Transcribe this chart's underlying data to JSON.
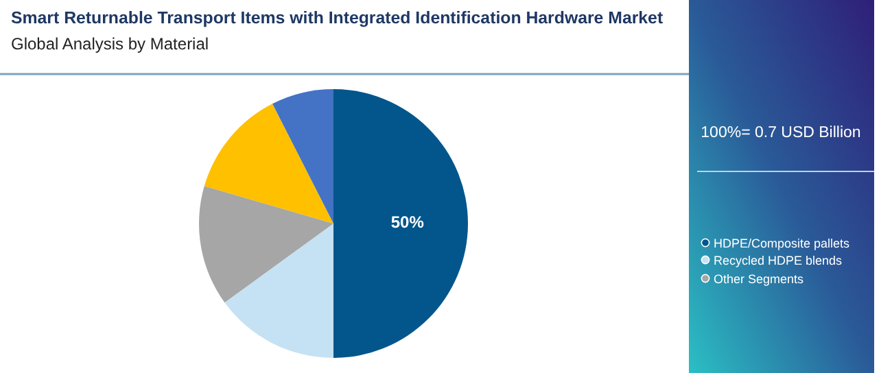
{
  "chart_data": {
    "type": "pie",
    "title": "Smart Returnable Transport Items with Integrated Identification Hardware Market",
    "subtitle": "Global Analysis by Material",
    "categories": [
      "HDPE/Composite pallets",
      "Recycled HDPE blends",
      "Other Segments",
      null,
      null
    ],
    "values": [
      50,
      15,
      14.5,
      13,
      7.5
    ],
    "colors": [
      "#02568c",
      "#c5e2f4",
      "#a6a6a6",
      "#ffc000",
      "#4472c4"
    ],
    "value_labels": [
      "50%",
      null,
      null,
      null,
      null
    ],
    "legend": "right",
    "annotations": [
      "100%= 0.7 USD Billion"
    ]
  }
}
